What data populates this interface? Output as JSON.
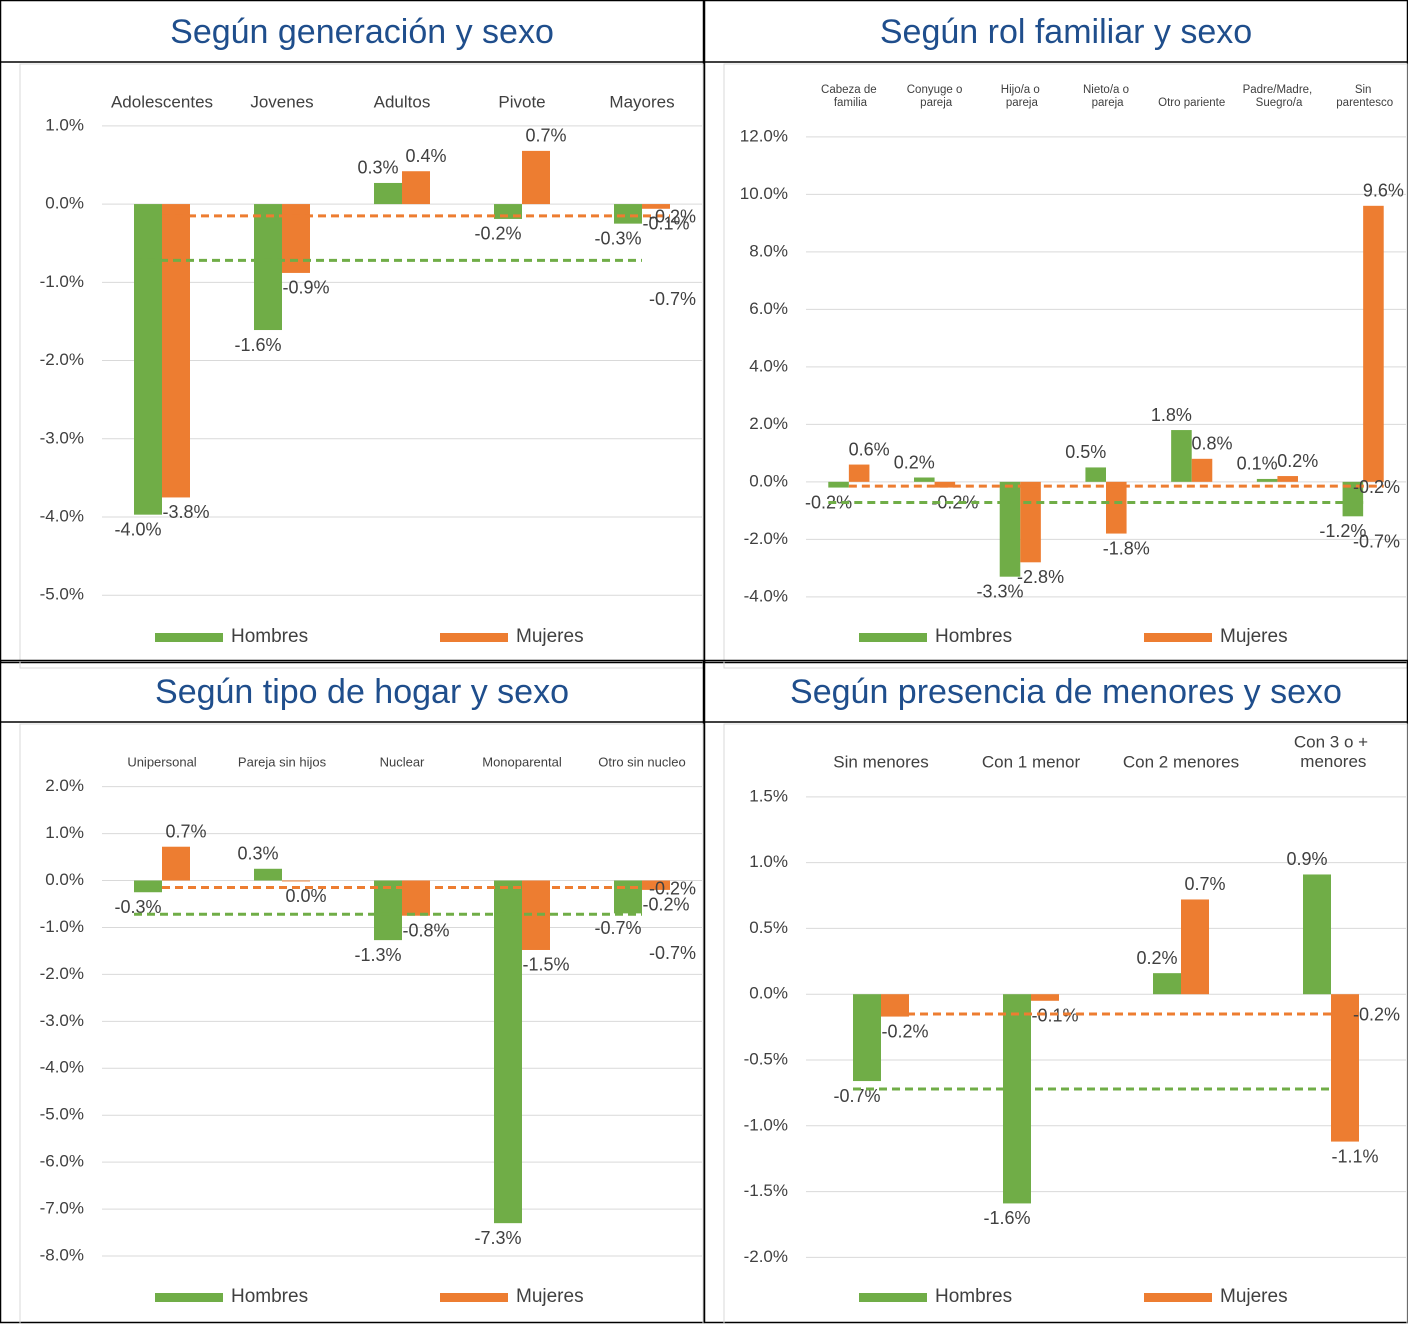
{
  "chart_data": [
    {
      "type": "bar",
      "title": "Según generación y sexo",
      "categories": [
        "Adolescentes",
        "Jovenes",
        "Adultos",
        "Pivote",
        "Mayores"
      ],
      "ylim": [
        -5.7,
        1.65
      ],
      "yticks": [
        {
          "value": 1,
          "label": "1.0%"
        },
        {
          "value": 0,
          "label": "0.0%"
        },
        {
          "value": -1,
          "label": "-1.0%"
        },
        {
          "value": -2,
          "label": "-2.0%"
        },
        {
          "value": -3,
          "label": "-3.0%"
        },
        {
          "value": -4,
          "label": "-4.0%"
        },
        {
          "value": -5,
          "label": "-5.0%"
        }
      ],
      "grid": true,
      "legend": "bottom",
      "series": [
        {
          "name": "Hombres",
          "color": "#70ad47",
          "values": [
            -3.97,
            -1.61,
            0.27,
            -0.19,
            -0.25
          ],
          "value_labels": [
            "-4.0%",
            "-1.6%",
            "0.3%",
            "-0.2%",
            "-0.3%"
          ],
          "average": -0.72,
          "average_label": "-0.7%"
        },
        {
          "name": "Mujeres",
          "color": "#ed7d31",
          "values": [
            -3.75,
            -0.88,
            0.42,
            0.68,
            -0.06
          ],
          "value_labels": [
            "-3.8%",
            "-0.9%",
            "0.4%",
            "0.7%",
            "-0.1%"
          ],
          "average": -0.15,
          "average_label": "-0.2%"
        }
      ]
    },
    {
      "type": "bar",
      "title": "Según rol familiar y sexo",
      "categories": [
        "Cabeza de familia",
        "Conyuge o pareja",
        "Hijo/a o pareja",
        "Nieto/a o pareja",
        "Otro pariente",
        "Padre/Madre, Suegro/a",
        "Sin parentesco"
      ],
      "ylim": [
        -5.85,
        14.15
      ],
      "yticks": [
        {
          "value": 12,
          "label": "12.0%"
        },
        {
          "value": 10,
          "label": "10.0%"
        },
        {
          "value": 8,
          "label": "8.0%"
        },
        {
          "value": 6,
          "label": "6.0%"
        },
        {
          "value": 4,
          "label": "4.0%"
        },
        {
          "value": 2,
          "label": "2.0%"
        },
        {
          "value": 0,
          "label": "0.0%"
        },
        {
          "value": -2,
          "label": "-2.0%"
        },
        {
          "value": -4,
          "label": "-4.0%"
        }
      ],
      "grid": true,
      "legend": "bottom",
      "series": [
        {
          "name": "Hombres",
          "color": "#70ad47",
          "values": [
            -0.2,
            0.15,
            -3.3,
            0.5,
            1.8,
            0.1,
            -1.2
          ],
          "value_labels": [
            "-0.2%",
            "0.2%",
            "-3.3%",
            "0.5%",
            "1.8%",
            "0.1%",
            "-1.2%"
          ],
          "average": -0.72,
          "average_label": "-0.7%"
        },
        {
          "name": "Mujeres",
          "color": "#ed7d31",
          "values": [
            0.6,
            -0.2,
            -2.8,
            -1.8,
            0.8,
            0.2,
            9.6
          ],
          "value_labels": [
            "0.6%",
            "-0.2%",
            "-2.8%",
            "-1.8%",
            "0.8%",
            "0.2%",
            "9.6%"
          ],
          "average": -0.15,
          "average_label": "-0.2%"
        }
      ]
    },
    {
      "type": "bar",
      "title": "Según tipo de hogar y sexo",
      "categories": [
        "Unipersonal",
        "Pareja sin hijos",
        "Nuclear",
        "Monoparental",
        "Otro sin nucleo"
      ],
      "ylim": [
        -9.15,
        3.1
      ],
      "yticks": [
        {
          "value": 2,
          "label": "2.0%"
        },
        {
          "value": 1,
          "label": "1.0%"
        },
        {
          "value": 0,
          "label": "0.0%"
        },
        {
          "value": -1,
          "label": "-1.0%"
        },
        {
          "value": -2,
          "label": "-2.0%"
        },
        {
          "value": -3,
          "label": "-3.0%"
        },
        {
          "value": -4,
          "label": "-4.0%"
        },
        {
          "value": -5,
          "label": "-5.0%"
        },
        {
          "value": -6,
          "label": "-6.0%"
        },
        {
          "value": -7,
          "label": "-7.0%"
        },
        {
          "value": -8,
          "label": "-8.0%"
        }
      ],
      "grid": true,
      "legend": "bottom",
      "series": [
        {
          "name": "Hombres",
          "color": "#70ad47",
          "values": [
            -0.25,
            0.25,
            -1.27,
            -7.3,
            -0.7
          ],
          "value_labels": [
            "-0.3%",
            "0.3%",
            "-1.3%",
            "-7.3%",
            "-0.7%"
          ],
          "average": -0.72,
          "average_label": "-0.7%"
        },
        {
          "name": "Mujeres",
          "color": "#ed7d31",
          "values": [
            0.72,
            -0.02,
            -0.75,
            -1.48,
            -0.2
          ],
          "value_labels": [
            "0.7%",
            "0.0%",
            "-0.8%",
            "-1.5%",
            "-0.2%"
          ],
          "average": -0.15,
          "average_label": "-0.2%"
        }
      ]
    },
    {
      "type": "bar",
      "title": "Según presencia de menores y sexo",
      "categories": [
        "Sin menores",
        "Con 1 menor",
        "Con 2 menores",
        "Con 3 o + menores"
      ],
      "ylim": [
        -2.4,
        1.97
      ],
      "yticks": [
        {
          "value": 1.5,
          "label": "1.5%"
        },
        {
          "value": 1,
          "label": "1.0%"
        },
        {
          "value": 0.5,
          "label": "0.5%"
        },
        {
          "value": 0,
          "label": "0.0%"
        },
        {
          "value": -0.5,
          "label": "-0.5%"
        },
        {
          "value": -1,
          "label": "-1.0%"
        },
        {
          "value": -1.5,
          "label": "-1.5%"
        },
        {
          "value": -2,
          "label": "-2.0%"
        }
      ],
      "grid": true,
      "legend": "bottom",
      "series": [
        {
          "name": "Hombres",
          "color": "#70ad47",
          "values": [
            -0.66,
            -1.59,
            0.16,
            0.91
          ],
          "value_labels": [
            "-0.7%",
            "-1.6%",
            "0.2%",
            "0.9%"
          ],
          "average": -0.72
        },
        {
          "name": "Mujeres",
          "color": "#ed7d31",
          "values": [
            -0.17,
            -0.05,
            0.72,
            -1.12
          ],
          "value_labels": [
            "-0.2%",
            "-0.1%",
            "0.7%",
            "-1.1%"
          ],
          "average": -0.15,
          "average_label": "-0.2%"
        }
      ]
    }
  ]
}
